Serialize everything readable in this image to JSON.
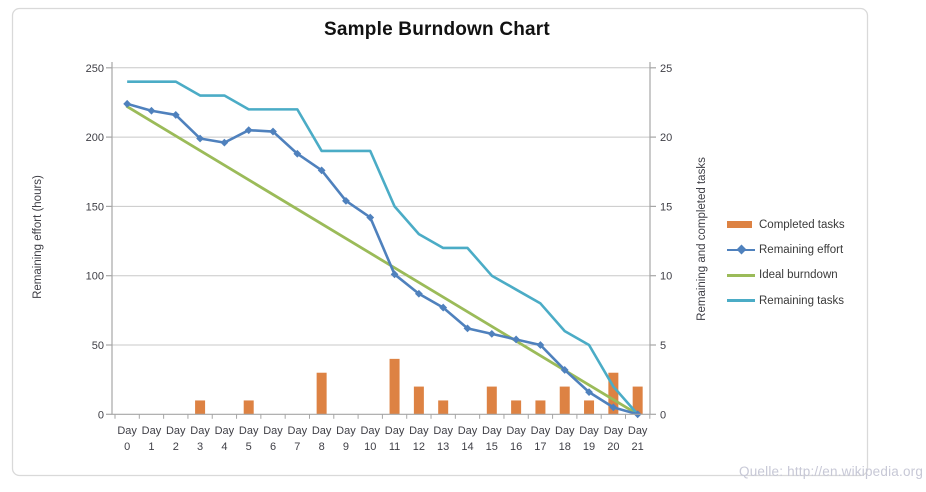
{
  "title": "Sample Burndown Chart",
  "watermark": "Quelle: http://en.wikipedia.org",
  "chart_data": {
    "type": "combo",
    "grid": true,
    "legend_position": "right",
    "categories": [
      "Day 0",
      "Day 1",
      "Day 2",
      "Day 3",
      "Day 4",
      "Day 5",
      "Day 6",
      "Day 7",
      "Day 8",
      "Day 9",
      "Day 10",
      "Day 11",
      "Day 12",
      "Day 13",
      "Day 14",
      "Day 15",
      "Day 16",
      "Day 17",
      "Day 18",
      "Day 19",
      "Day 20",
      "Day 21"
    ],
    "left_axis": {
      "title": "Remaining effort (hours)",
      "ticks": [
        0,
        50,
        100,
        150,
        200,
        250
      ],
      "range": [
        0,
        250
      ]
    },
    "right_axis": {
      "title": "Remaining and  completed tasks",
      "ticks": [
        0,
        5,
        10,
        15,
        20,
        25
      ],
      "range": [
        0,
        25
      ]
    },
    "series": [
      {
        "name": "Completed tasks",
        "type": "bar",
        "axis": "right",
        "color": "#DD8243",
        "values": [
          0,
          0,
          0,
          1,
          0,
          1,
          0,
          0,
          3,
          0,
          0,
          4,
          2,
          1,
          0,
          2,
          1,
          1,
          2,
          1,
          3,
          2
        ]
      },
      {
        "name": "Remaining effort",
        "type": "line",
        "marker": "diamond",
        "axis": "left",
        "color": "#4F81BD",
        "values": [
          224,
          219,
          216,
          199,
          196,
          205,
          204,
          188,
          176,
          154,
          142,
          101,
          87,
          77,
          62,
          58,
          54,
          50,
          32,
          16,
          5,
          0
        ]
      },
      {
        "name": "Ideal burndown",
        "type": "line",
        "axis": "left",
        "color": "#9BBB59",
        "values": [
          222,
          211.4,
          200.9,
          190.3,
          179.7,
          169.1,
          158.6,
          148,
          137.4,
          126.9,
          116.3,
          105.7,
          95.1,
          84.6,
          74,
          63.4,
          52.9,
          42.3,
          31.7,
          21.1,
          10.6,
          0
        ]
      },
      {
        "name": "Remaining tasks",
        "type": "line",
        "axis": "right",
        "color": "#4BACC6",
        "values": [
          24,
          24,
          24,
          23,
          23,
          22,
          22,
          22,
          19,
          19,
          19,
          15,
          13,
          12,
          12,
          10,
          9,
          8,
          6,
          5,
          2,
          0
        ]
      }
    ],
    "colors": {
      "grid": "#C8C8C8",
      "axis": "#A6A6A6",
      "frame": "#D9D9D9",
      "text": "#3f3f46"
    }
  }
}
